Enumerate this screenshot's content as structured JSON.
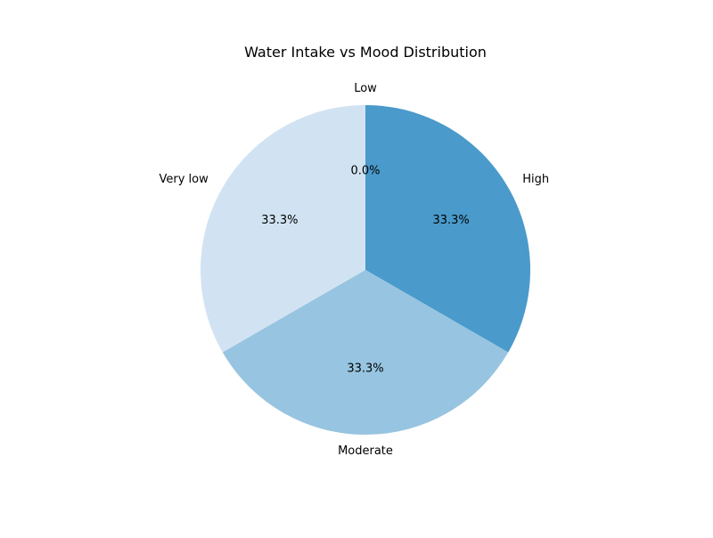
{
  "chart_data": {
    "type": "pie",
    "title": "Water Intake vs Mood Distribution",
    "categories": [
      "Low",
      "High",
      "Moderate",
      "Very low"
    ],
    "values": [
      0,
      1,
      1,
      1
    ],
    "percent_labels": [
      "0.0%",
      "33.3%",
      "33.3%",
      "33.3%"
    ],
    "colors": [
      "#f7fbff",
      "#4a9acb",
      "#97c4e0",
      "#d1e3f2"
    ],
    "start_angle_deg": 90,
    "direction": "clockwise",
    "legend": "none"
  }
}
